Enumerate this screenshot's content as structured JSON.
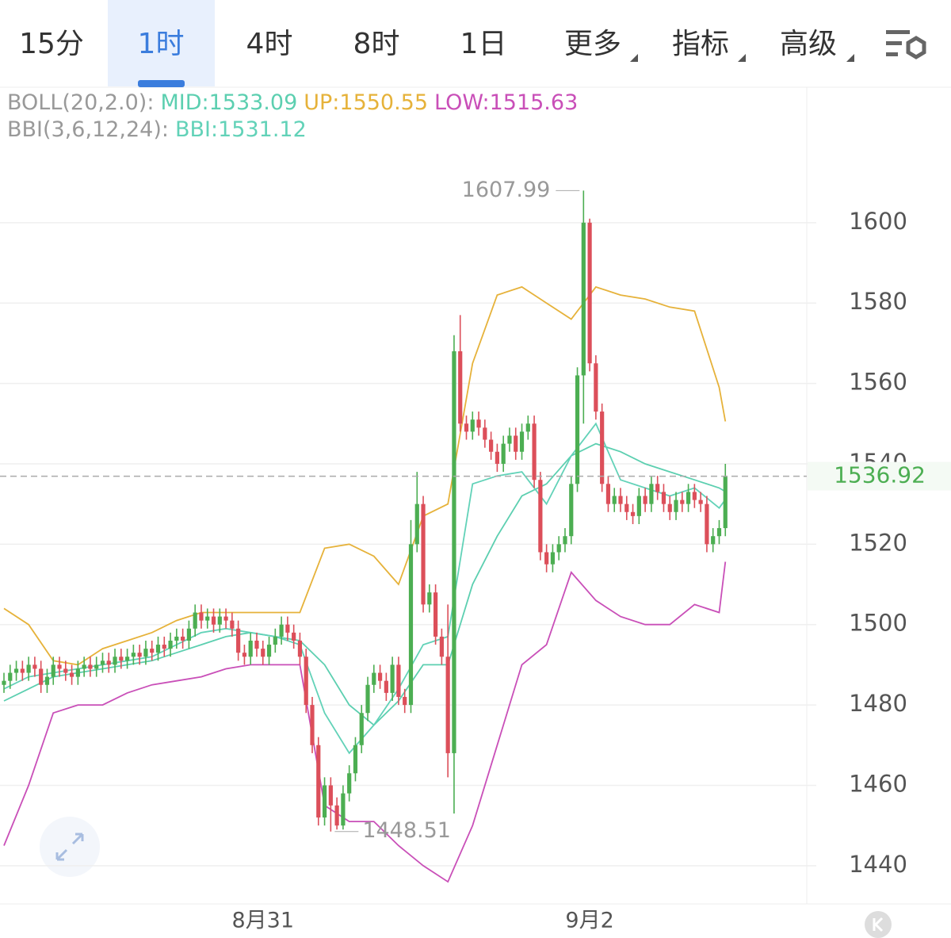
{
  "tabs": [
    "15分",
    "1时",
    "4时",
    "8时",
    "1日",
    "更多",
    "指标",
    "高级"
  ],
  "active_tab": "1时",
  "chart_data": {
    "type": "candlestick",
    "categories": [
      null,
      null,
      null,
      null,
      null,
      null,
      null,
      null,
      null,
      null,
      null,
      null,
      null,
      null,
      null,
      null,
      null,
      null,
      null,
      null,
      null,
      null,
      null,
      null,
      null,
      null,
      null,
      null,
      null,
      null,
      null,
      null,
      null,
      null,
      null,
      null,
      null,
      null,
      null,
      null,
      null,
      null,
      "8月31",
      null,
      null,
      null,
      null,
      null,
      null,
      null,
      null,
      null,
      null,
      null,
      null,
      null,
      null,
      null,
      null,
      null,
      null,
      null,
      null,
      null,
      null,
      null,
      null,
      null,
      null,
      null,
      null,
      null,
      null,
      null,
      null,
      null,
      null,
      null,
      null,
      null,
      null,
      null,
      null,
      null,
      null,
      null,
      null,
      null,
      null,
      null,
      null,
      null,
      null,
      null,
      null,
      "9月2",
      null,
      null,
      null,
      null,
      null,
      null,
      null,
      null,
      null,
      null,
      null,
      null,
      null,
      null,
      null,
      null,
      null,
      null,
      null,
      null,
      null,
      null
    ],
    "open": [
      1485,
      1486,
      1488,
      1489,
      1488,
      1490,
      1489,
      1485,
      1487,
      1490,
      1489,
      1488,
      1487,
      1489,
      1490,
      1489,
      1490,
      1491,
      1490,
      1492,
      1491,
      1492,
      1493,
      1492,
      1494,
      1493,
      1495,
      1494,
      1496,
      1497,
      1496,
      1499,
      1503,
      1501,
      1502,
      1500,
      1502,
      1501,
      1499,
      1493,
      1492,
      1496,
      1494,
      1492,
      1495,
      1497,
      1500,
      1498,
      1496,
      1492,
      1480,
      1470,
      1452,
      1460,
      1455,
      1450,
      1458,
      1463,
      1470,
      1478,
      1485,
      1488,
      1486,
      1483,
      1490,
      1482,
      1480,
      1520,
      1530,
      1505,
      1508,
      1497,
      1492,
      1468,
      1568,
      1550,
      1548,
      1551,
      1549,
      1546,
      1543,
      1540,
      1545,
      1547,
      1543,
      1548,
      1550,
      1536,
      1518,
      1515,
      1518,
      1520,
      1522,
      1535,
      1562,
      1600,
      1565,
      1553,
      1535,
      1530,
      1532,
      1530,
      1528,
      1527,
      1532,
      1530,
      1535,
      1533,
      1530,
      1528,
      1531,
      1530,
      1533,
      1531,
      1530,
      1520,
      1522,
      1524
    ],
    "high": [
      1488,
      1490,
      1491,
      1491,
      1492,
      1492,
      1491,
      1489,
      1492,
      1492,
      1491,
      1490,
      1491,
      1492,
      1492,
      1492,
      1493,
      1493,
      1494,
      1494,
      1494,
      1495,
      1495,
      1496,
      1496,
      1497,
      1497,
      1498,
      1499,
      1499,
      1501,
      1505,
      1505,
      1504,
      1504,
      1504,
      1504,
      1503,
      1501,
      1495,
      1498,
      1498,
      1496,
      1497,
      1499,
      1502,
      1502,
      1500,
      1498,
      1494,
      1482,
      1472,
      1462,
      1462,
      1457,
      1460,
      1465,
      1472,
      1480,
      1487,
      1490,
      1490,
      1488,
      1492,
      1492,
      1484,
      1526,
      1538,
      1532,
      1510,
      1510,
      1499,
      1505,
      1572,
      1577,
      1552,
      1553,
      1553,
      1551,
      1548,
      1545,
      1547,
      1549,
      1549,
      1550,
      1552,
      1552,
      1538,
      1520,
      1520,
      1522,
      1524,
      1537,
      1564,
      1607.99,
      1601,
      1567,
      1555,
      1537,
      1534,
      1534,
      1532,
      1530,
      1534,
      1534,
      1537,
      1537,
      1535,
      1532,
      1533,
      1533,
      1535,
      1535,
      1533,
      1532,
      1524,
      1526,
      1540
    ],
    "low": [
      1483,
      1484,
      1486,
      1486,
      1486,
      1487,
      1483,
      1483,
      1485,
      1487,
      1486,
      1485,
      1485,
      1487,
      1487,
      1487,
      1488,
      1488,
      1488,
      1489,
      1489,
      1490,
      1490,
      1490,
      1491,
      1491,
      1492,
      1492,
      1494,
      1494,
      1494,
      1497,
      1499,
      1499,
      1498,
      1498,
      1499,
      1497,
      1491,
      1490,
      1490,
      1492,
      1490,
      1490,
      1493,
      1495,
      1496,
      1494,
      1490,
      1478,
      1468,
      1450,
      1450,
      1448.51,
      1449,
      1449,
      1456,
      1461,
      1468,
      1476,
      1483,
      1484,
      1481,
      1481,
      1480,
      1478,
      1478,
      1518,
      1503,
      1503,
      1495,
      1490,
      1462,
      1453,
      1548,
      1546,
      1546,
      1547,
      1544,
      1541,
      1538,
      1538,
      1543,
      1541,
      1541,
      1546,
      1534,
      1516,
      1513,
      1513,
      1516,
      1518,
      1520,
      1533,
      1550,
      1563,
      1551,
      1533,
      1528,
      1528,
      1528,
      1526,
      1525,
      1525,
      1528,
      1528,
      1531,
      1528,
      1526,
      1526,
      1528,
      1528,
      1529,
      1528,
      1518,
      1518,
      1520,
      1522
    ],
    "close": [
      1486,
      1488,
      1489,
      1488,
      1490,
      1489,
      1485,
      1487,
      1490,
      1489,
      1488,
      1487,
      1489,
      1490,
      1489,
      1490,
      1491,
      1490,
      1492,
      1491,
      1492,
      1493,
      1492,
      1494,
      1493,
      1495,
      1494,
      1496,
      1497,
      1496,
      1499,
      1503,
      1501,
      1502,
      1500,
      1502,
      1501,
      1499,
      1493,
      1492,
      1496,
      1494,
      1492,
      1495,
      1497,
      1500,
      1498,
      1496,
      1492,
      1480,
      1470,
      1452,
      1460,
      1455,
      1450,
      1458,
      1463,
      1470,
      1478,
      1485,
      1488,
      1486,
      1483,
      1490,
      1482,
      1480,
      1520,
      1530,
      1505,
      1508,
      1497,
      1492,
      1468,
      1568,
      1550,
      1548,
      1551,
      1549,
      1546,
      1543,
      1540,
      1545,
      1547,
      1543,
      1548,
      1550,
      1536,
      1518,
      1515,
      1518,
      1520,
      1522,
      1535,
      1562,
      1600,
      1565,
      1553,
      1535,
      1530,
      1532,
      1530,
      1528,
      1527,
      1532,
      1530,
      1535,
      1533,
      1530,
      1528,
      1531,
      1530,
      1533,
      1531,
      1530,
      1520,
      1522,
      1524,
      1536.92
    ],
    "colors": {
      "up": "#4cae52",
      "down": "#dc4f5a"
    },
    "line_x": [
      0,
      4,
      8,
      12,
      16,
      20,
      24,
      28,
      32,
      36,
      40,
      44,
      48,
      52,
      56,
      60,
      64,
      68,
      72,
      76,
      80,
      84,
      88,
      92,
      96,
      100,
      104,
      108,
      112,
      116,
      117
    ],
    "overlays": [
      {
        "group": "BOLL(20,2.0):",
        "lines": [
          {
            "name": "MID:",
            "color": "#5ccfb0",
            "values": [
              1481,
              1484,
              1487,
              1488,
              1489,
              1490,
              1491,
              1493,
              1495,
              1497,
              1498,
              1497,
              1496,
              1490,
              1480,
              1475,
              1481,
              1490,
              1490,
              1510,
              1522,
              1532,
              1535,
              1542,
              1545,
              1543,
              1540,
              1538,
              1536,
              1534,
              1533.09
            ]
          },
          {
            "name": "UP:",
            "color": "#e6b23a",
            "values": [
              1504,
              1500,
              1491,
              1490,
              1494,
              1496,
              1498,
              1501,
              1503,
              1503,
              1503,
              1503,
              1503,
              1519,
              1520,
              1517,
              1510,
              1527,
              1530,
              1565,
              1582,
              1584,
              1580,
              1576,
              1584,
              1582,
              1581,
              1579,
              1578,
              1559,
              1550.55
            ]
          },
          {
            "name": "LOW:",
            "color": "#c94fb8",
            "values": [
              1445,
              1460,
              1478,
              1480,
              1480,
              1483,
              1485,
              1486,
              1487,
              1489,
              1490,
              1490,
              1490,
              1455,
              1451,
              1451,
              1445,
              1440,
              1436,
              1450,
              1470,
              1490,
              1495,
              1513,
              1506,
              1502,
              1500,
              1500,
              1505,
              1503,
              1515.63
            ]
          }
        ]
      },
      {
        "group": "BBI(3,6,12,24):",
        "lines": [
          {
            "name": "BBI:",
            "color": "#62d2b8",
            "values": [
              1484,
              1487,
              1488,
              1489,
              1490,
              1491,
              1492,
              1495,
              1498,
              1499,
              1498,
              1497,
              1495,
              1478,
              1468,
              1475,
              1484,
              1495,
              1497,
              1535,
              1537,
              1538,
              1530,
              1542,
              1550,
              1536,
              1534,
              1532,
              1534,
              1529,
              1531.12
            ]
          }
        ]
      }
    ],
    "ylim": [
      1430.5,
      1633.7
    ],
    "yticks": [
      1440,
      1460,
      1480,
      1500,
      1520,
      1540,
      1560,
      1580,
      1600
    ],
    "grid": true
  }
}
